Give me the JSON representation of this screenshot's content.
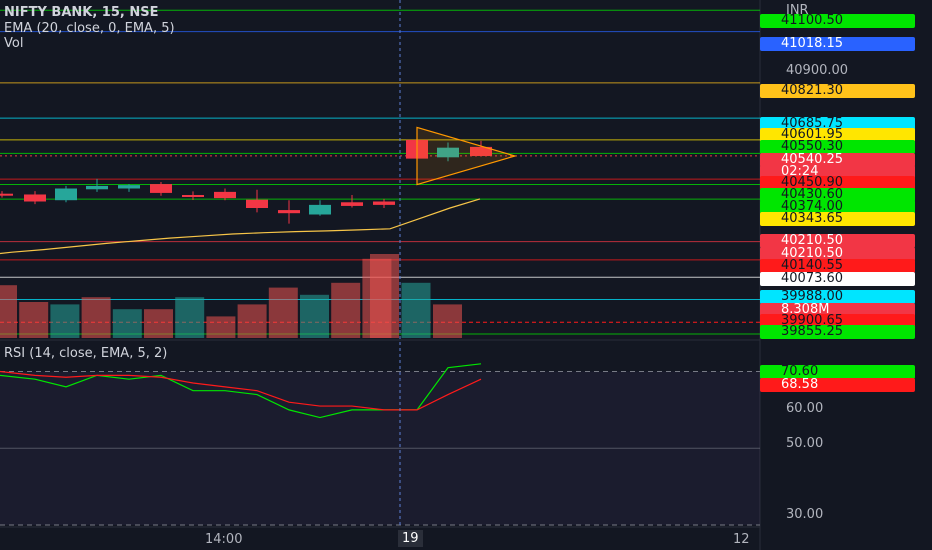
{
  "header": {
    "symbol_title": "NIFTY BANK, 15, NSE",
    "ema_label": "EMA (20, close, 0, EMA, 5)",
    "vol_label": "Vol",
    "rsi_label": "RSI (14, close, EMA, 5, 2)",
    "currency": "INR"
  },
  "price_axis": {
    "labels": [
      "40900.00"
    ]
  },
  "rsi_axis": {
    "labels": [
      "60.00",
      "50.00",
      "30.00"
    ]
  },
  "time_axis": {
    "labels": [
      "14:00",
      "19",
      "12"
    ]
  },
  "price_tags": [
    {
      "text": "41100.50",
      "bg": "#00e600",
      "fg": "#131722"
    },
    {
      "text": "41018.15",
      "bg": "#2962ff",
      "fg": "#ffffff"
    },
    {
      "text": "40821.30",
      "bg": "#ffc21a",
      "fg": "#131722"
    },
    {
      "text": "40685.75",
      "bg": "#00e5ff",
      "fg": "#131722"
    },
    {
      "text": "40601.95",
      "bg": "#ffe600",
      "fg": "#131722"
    },
    {
      "text": "40550.30",
      "bg": "#00e600",
      "fg": "#131722"
    },
    {
      "text": "40540.25",
      "bg": "#f23645",
      "fg": "#ffffff"
    },
    {
      "text": "02:24",
      "bg": "#f23645",
      "fg": "#ffffff"
    },
    {
      "text": "40450.90",
      "bg": "#ff1a1a",
      "fg": "#131722"
    },
    {
      "text": "40430.60",
      "bg": "#00e600",
      "fg": "#131722"
    },
    {
      "text": "40374.00",
      "bg": "#00e600",
      "fg": "#131722"
    },
    {
      "text": "40343.65",
      "bg": "#ffe600",
      "fg": "#131722"
    },
    {
      "text": "40210.50",
      "bg": "#f23645",
      "fg": "#ffffff"
    },
    {
      "text": "40210.50",
      "bg": "#f23645",
      "fg": "#ffffff"
    },
    {
      "text": "40140.55",
      "bg": "#ff1a1a",
      "fg": "#131722"
    },
    {
      "text": "40073.60",
      "bg": "#ffffff",
      "fg": "#131722"
    },
    {
      "text": "39988.00",
      "bg": "#00e5ff",
      "fg": "#131722"
    },
    {
      "text": "8.308M",
      "bg": "#f23645",
      "fg": "#ffffff"
    },
    {
      "text": "39900.65",
      "bg": "#ff1a1a",
      "fg": "#131722"
    },
    {
      "text": "39855.25",
      "bg": "#00e600",
      "fg": "#131722"
    },
    {
      "text": "70.60",
      "bg": "#00e600",
      "fg": "#131722"
    },
    {
      "text": "68.58",
      "bg": "#ff1a1a",
      "fg": "#ffffff"
    }
  ],
  "chart_data": [
    {
      "type": "candlestick",
      "title": "NIFTY BANK, 15, NSE",
      "ylim": [
        39840,
        41140
      ],
      "candles": [
        {
          "o": 40395,
          "h": 40405,
          "l": 40380,
          "c": 40390
        },
        {
          "o": 40392,
          "h": 40405,
          "l": 40355,
          "c": 40365
        },
        {
          "o": 40370,
          "h": 40425,
          "l": 40362,
          "c": 40415
        },
        {
          "o": 40412,
          "h": 40452,
          "l": 40402,
          "c": 40425
        },
        {
          "o": 40415,
          "h": 40432,
          "l": 40402,
          "c": 40428
        },
        {
          "o": 40432,
          "h": 40440,
          "l": 40387,
          "c": 40398
        },
        {
          "o": 40390,
          "h": 40404,
          "l": 40371,
          "c": 40388
        },
        {
          "o": 40402,
          "h": 40415,
          "l": 40370,
          "c": 40378
        },
        {
          "o": 40372,
          "h": 40410,
          "l": 40323,
          "c": 40340
        },
        {
          "o": 40332,
          "h": 40370,
          "l": 40280,
          "c": 40320
        },
        {
          "o": 40315,
          "h": 40370,
          "l": 40310,
          "c": 40352
        },
        {
          "o": 40362,
          "h": 40390,
          "l": 40342,
          "c": 40348
        },
        {
          "o": 40365,
          "h": 40375,
          "l": 40340,
          "c": 40352
        },
        {
          "o": 40602,
          "h": 40630,
          "l": 40445,
          "c": 40530
        },
        {
          "o": 40535,
          "h": 40592,
          "l": 40520,
          "c": 40572
        },
        {
          "o": 40575,
          "h": 40598,
          "l": 40540,
          "c": 40540
        }
      ],
      "ema": [
        40170,
        40180,
        40192,
        40204,
        40214,
        40224,
        40232,
        40240,
        40245,
        40249,
        40252,
        40256,
        40260,
        40300,
        40340,
        40375
      ]
    },
    {
      "type": "bar",
      "title": "Vol",
      "values": [
        22,
        15,
        14,
        17,
        12,
        12,
        17,
        9,
        14,
        21,
        18,
        23,
        33,
        35,
        23,
        14
      ],
      "colors": [
        "r",
        "r",
        "g",
        "r",
        "g",
        "r",
        "g",
        "r",
        "r",
        "r",
        "g",
        "r",
        "r",
        "r",
        "g",
        "r"
      ],
      "last_value": "8.308M"
    },
    {
      "type": "line",
      "title": "RSI (14, close, EMA, 5, 2)",
      "ylim": [
        30,
        73
      ],
      "series": [
        {
          "color": "#00e600",
          "values": [
            69,
            68,
            66,
            69,
            68,
            69,
            65,
            65,
            64,
            60,
            58,
            60,
            60,
            60,
            71,
            72,
            70.6
          ]
        },
        {
          "color": "#ff1a1a",
          "values": [
            70,
            69,
            68.5,
            69,
            69,
            68.5,
            67,
            66,
            65,
            62,
            61,
            61,
            60,
            60,
            64,
            68,
            68.58
          ]
        }
      ],
      "y_ticks": [
        60,
        50,
        30
      ],
      "overbought": 70,
      "oversold": 30
    }
  ]
}
